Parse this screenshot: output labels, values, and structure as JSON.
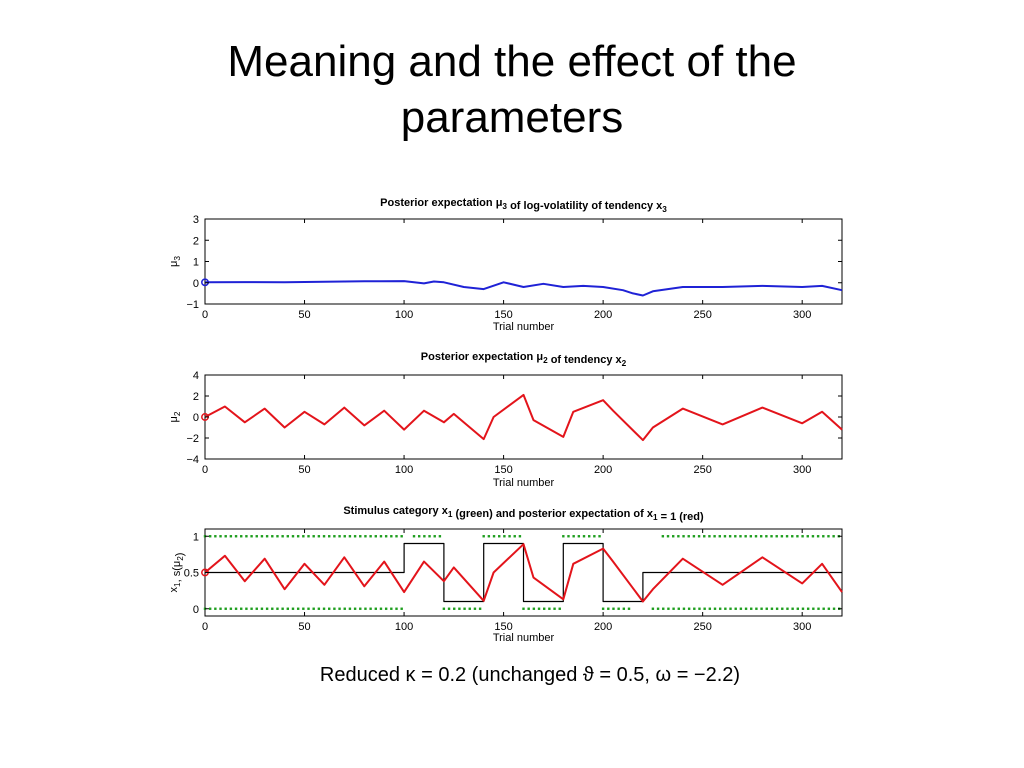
{
  "slide": {
    "title_line1": "Meaning and the effect of the",
    "title_line2": "parameters",
    "caption": "Reduced κ = 0.2 (unchanged ϑ = 0.5, ω = −2.2)"
  },
  "colors": {
    "blue": "#1f22d6",
    "red": "#e3141b",
    "green": "#1e9e1e",
    "black": "#000000"
  },
  "chart_data": [
    {
      "type": "line",
      "title": "Posterior expectation μ3 of log-volatility of tendency x3",
      "xlabel": "Trial number",
      "ylabel": "μ3",
      "xlim": [
        0,
        320
      ],
      "ylim": [
        -1,
        3
      ],
      "xticks": [
        0,
        50,
        100,
        150,
        200,
        250,
        300
      ],
      "yticks": [
        -1,
        0,
        1,
        2,
        3
      ],
      "grid": false,
      "series": [
        {
          "color": "blue",
          "x": [
            0,
            20,
            40,
            60,
            80,
            100,
            110,
            115,
            120,
            130,
            140,
            150,
            160,
            170,
            180,
            190,
            200,
            210,
            215,
            220,
            225,
            240,
            260,
            280,
            300,
            310,
            320
          ],
          "y": [
            0.02,
            0.03,
            0.02,
            0.05,
            0.07,
            0.08,
            -0.03,
            0.06,
            0.02,
            -0.2,
            -0.3,
            0.02,
            -0.2,
            -0.05,
            -0.2,
            -0.15,
            -0.2,
            -0.35,
            -0.5,
            -0.6,
            -0.4,
            -0.2,
            -0.2,
            -0.15,
            -0.2,
            -0.15,
            -0.35
          ]
        }
      ]
    },
    {
      "type": "line",
      "title": "Posterior expectation μ2 of tendency x2",
      "xlabel": "Trial number",
      "ylabel": "μ2",
      "xlim": [
        0,
        320
      ],
      "ylim": [
        -4,
        4
      ],
      "xticks": [
        0,
        50,
        100,
        150,
        200,
        250,
        300
      ],
      "yticks": [
        -4,
        -2,
        0,
        2,
        4
      ],
      "grid": false,
      "series": [
        {
          "color": "red",
          "x": [
            0,
            10,
            20,
            30,
            40,
            50,
            60,
            70,
            80,
            90,
            100,
            110,
            120,
            125,
            140,
            145,
            160,
            165,
            180,
            185,
            200,
            205,
            220,
            225,
            240,
            260,
            280,
            300,
            310,
            320
          ],
          "y": [
            0,
            1.0,
            -0.5,
            0.8,
            -1.0,
            0.5,
            -0.7,
            0.9,
            -0.8,
            0.6,
            -1.2,
            0.6,
            -0.5,
            0.3,
            -2.1,
            0.0,
            2.1,
            -0.3,
            -1.9,
            0.5,
            1.6,
            0.6,
            -2.2,
            -1.0,
            0.8,
            -0.7,
            0.9,
            -0.6,
            0.5,
            -1.2
          ]
        }
      ]
    },
    {
      "type": "line",
      "title": "Stimulus category x1 (green) and posterior expectation of x1 = 1 (red)",
      "xlabel": "Trial number",
      "ylabel": "x1, s(μ2)",
      "xlim": [
        0,
        320
      ],
      "ylim": [
        -0.1,
        1.1
      ],
      "xticks": [
        0,
        50,
        100,
        150,
        200,
        250,
        300
      ],
      "yticks": [
        0,
        0.5,
        1
      ],
      "grid": false,
      "series": [
        {
          "color": "black",
          "step": true,
          "x": [
            0,
            100,
            100,
            120,
            120,
            140,
            140,
            160,
            160,
            180,
            180,
            200,
            200,
            220,
            220,
            320
          ],
          "y": [
            0.5,
            0.5,
            0.9,
            0.9,
            0.1,
            0.1,
            0.9,
            0.9,
            0.1,
            0.1,
            0.9,
            0.9,
            0.1,
            0.1,
            0.5,
            0.5
          ]
        },
        {
          "color": "red",
          "x": [
            0,
            10,
            20,
            30,
            40,
            50,
            60,
            70,
            80,
            90,
            100,
            110,
            120,
            125,
            140,
            145,
            160,
            165,
            180,
            185,
            200,
            205,
            220,
            225,
            240,
            260,
            280,
            300,
            310,
            320
          ],
          "y": [
            0.5,
            0.73,
            0.38,
            0.69,
            0.27,
            0.62,
            0.33,
            0.71,
            0.31,
            0.65,
            0.23,
            0.65,
            0.38,
            0.57,
            0.11,
            0.5,
            0.89,
            0.43,
            0.13,
            0.62,
            0.83,
            0.65,
            0.1,
            0.27,
            0.69,
            0.33,
            0.71,
            0.35,
            0.62,
            0.23
          ]
        }
      ],
      "markers": [
        {
          "color": "green",
          "y": 1,
          "x_ranges": [
            [
              0,
              100
            ],
            [
              105,
              120
            ],
            [
              140,
              160
            ],
            [
              180,
              200
            ],
            [
              230,
              320
            ]
          ]
        },
        {
          "color": "green",
          "y": 0,
          "x_ranges": [
            [
              0,
              100
            ],
            [
              120,
              140
            ],
            [
              160,
              180
            ],
            [
              200,
              215
            ],
            [
              225,
              320
            ]
          ]
        }
      ]
    }
  ]
}
